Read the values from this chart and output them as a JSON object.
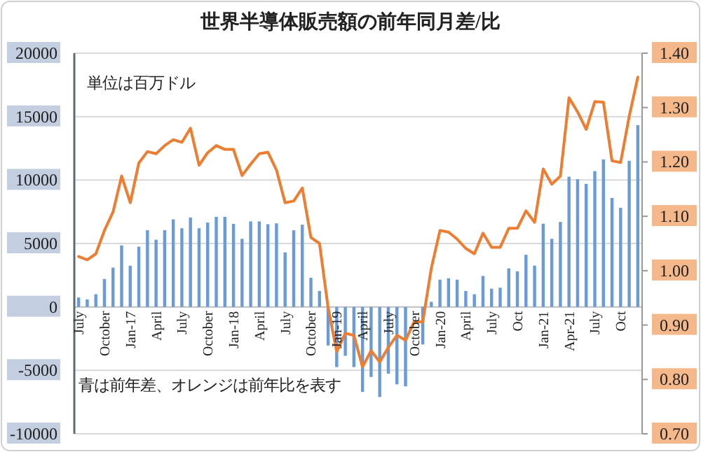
{
  "chart_data": {
    "type": "bar",
    "title": "世界半導体販売額の前年同月差/比",
    "annotations": [
      "単位は百万ドル",
      "青は前年差、オレンジは前年比を表す"
    ],
    "categories": [
      "July",
      null,
      null,
      "October",
      null,
      null,
      "Jan-17",
      null,
      null,
      "April",
      null,
      null,
      "July",
      null,
      null,
      "October",
      null,
      null,
      "Jan-18",
      null,
      null,
      "April",
      null,
      null,
      "July",
      null,
      null,
      "October",
      null,
      null,
      "Jan-19",
      null,
      null,
      "April",
      null,
      null,
      "July",
      null,
      null,
      "October",
      null,
      null,
      "Jan-20",
      null,
      null,
      "April",
      null,
      null,
      "July",
      null,
      null,
      "Oct",
      null,
      null,
      "Jan-21",
      null,
      null,
      "Apr-21",
      null,
      null,
      "July",
      null,
      null,
      "Oct",
      null,
      null
    ],
    "series": [
      {
        "color": "#6a9bd8",
        "values": [
          740,
          590,
          1000,
          2200,
          3100,
          4850,
          3250,
          4750,
          6050,
          5300,
          6050,
          6900,
          6200,
          7050,
          6200,
          6650,
          7100,
          7100,
          6550,
          5370,
          6740,
          6740,
          6520,
          6590,
          4300,
          6040,
          6480,
          2300,
          1260,
          -3040,
          -4740,
          -3850,
          -4740,
          -6700,
          -5520,
          -7100,
          -5260,
          -6100,
          -6260,
          null,
          -2960,
          400,
          2150,
          2260,
          2150,
          1260,
          1000,
          2440,
          1440,
          1520,
          3040,
          2810,
          4110,
          3260,
          6560,
          5370,
          6700,
          10260,
          10070,
          9700,
          10700,
          11630,
          8590,
          7810,
          11520,
          14330
        ]
      },
      {
        "type": "line",
        "axis": "y2",
        "color": "#ed7d31",
        "values": [
          1.026,
          1.02,
          1.031,
          1.074,
          1.108,
          1.174,
          1.125,
          1.198,
          1.219,
          1.215,
          1.23,
          1.241,
          1.236,
          1.262,
          1.194,
          1.217,
          1.23,
          1.223,
          1.223,
          1.175,
          1.196,
          1.215,
          1.218,
          1.185,
          1.125,
          1.128,
          1.152,
          1.061,
          1.05,
          0.932,
          0.851,
          0.885,
          0.881,
          0.823,
          0.853,
          0.832,
          0.859,
          0.881,
          0.872,
          0.906,
          0.906,
          1.005,
          1.074,
          1.071,
          1.058,
          1.041,
          1.031,
          1.069,
          1.043,
          1.043,
          1.078,
          1.078,
          1.11,
          1.089,
          1.187,
          1.159,
          1.174,
          1.318,
          1.292,
          1.26,
          1.311,
          1.31,
          1.202,
          1.199,
          1.284,
          1.356
        ]
      }
    ],
    "ylim": [
      -10000,
      20000
    ],
    "yticks": [
      -10000,
      -5000,
      0,
      5000,
      10000,
      15000,
      20000
    ],
    "y2lim": [
      0.7,
      1.4
    ],
    "y2ticks": [
      {
        "value": 0.7,
        "label": "0.70"
      },
      {
        "value": 0.8,
        "label": "0.80"
      },
      {
        "value": 0.9,
        "label": "0.90"
      },
      {
        "value": 1.0,
        "label": "1.00"
      },
      {
        "value": 1.1,
        "label": "1.10"
      },
      {
        "value": 1.2,
        "label": "1.20"
      },
      {
        "value": 1.3,
        "label": "1.30"
      },
      {
        "value": 1.4,
        "label": "1.40"
      }
    ],
    "grid": "y"
  }
}
